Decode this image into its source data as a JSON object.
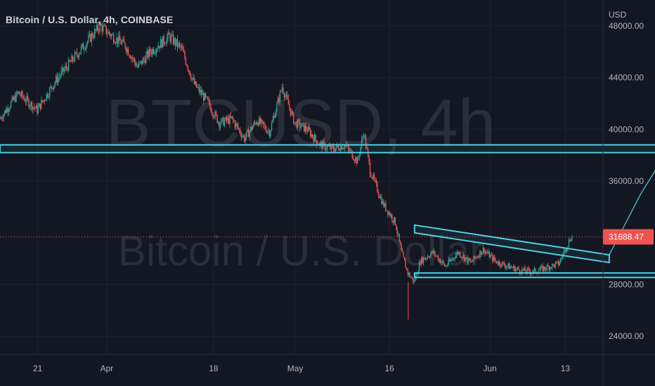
{
  "header": {
    "title": "Bitcoin / U.S. Dollar, 4h, COINBASE",
    "currency": "USD"
  },
  "watermark": {
    "symbol": "BTCUSD, 4h",
    "name": "Bitcoin / U.S. Dollar"
  },
  "colors": {
    "background": "#131722",
    "up": "#26a69a",
    "down": "#ef5350",
    "drawing": "#4dd0e1",
    "price_label": "#ef5350"
  },
  "chart_data": {
    "type": "candlestick",
    "title": "Bitcoin / U.S. Dollar, 4h, COINBASE",
    "ylabel": "USD",
    "ylim": [
      22600,
      50000
    ],
    "y_ticks": [
      "48000.00",
      "44000.00",
      "40000.00",
      "36000.00",
      "28000.00",
      "24000.00"
    ],
    "x_ticks": [
      "21",
      "Apr",
      "18",
      "May",
      "16",
      "Jun",
      "13"
    ],
    "x_range": [
      "2021-03-15",
      "2021-06-19"
    ],
    "current_price": "31688.47",
    "price_path": [
      [
        "2021-03-15",
        40800
      ],
      [
        "2021-03-18",
        42800
      ],
      [
        "2021-03-21",
        41500
      ],
      [
        "2021-03-24",
        43800
      ],
      [
        "2021-03-26",
        45000
      ],
      [
        "2021-03-29",
        46800
      ],
      [
        "2021-03-31",
        48000
      ],
      [
        "2021-04-02",
        47200
      ],
      [
        "2021-04-04",
        46500
      ],
      [
        "2021-04-06",
        44800
      ],
      [
        "2021-04-08",
        46000
      ],
      [
        "2021-04-11",
        47200
      ],
      [
        "2021-04-13",
        46200
      ],
      [
        "2021-04-15",
        43500
      ],
      [
        "2021-04-17",
        42200
      ],
      [
        "2021-04-19",
        40500
      ],
      [
        "2021-04-21",
        40800
      ],
      [
        "2021-04-23",
        39300
      ],
      [
        "2021-04-25",
        40700
      ],
      [
        "2021-04-27",
        39800
      ],
      [
        "2021-04-29",
        43300
      ],
      [
        "2021-05-01",
        40500
      ],
      [
        "2021-05-03",
        40000
      ],
      [
        "2021-05-05",
        38800
      ],
      [
        "2021-05-07",
        38500
      ],
      [
        "2021-05-09",
        38800
      ],
      [
        "2021-05-11",
        37500
      ],
      [
        "2021-05-12",
        39800
      ],
      [
        "2021-05-13",
        36800
      ],
      [
        "2021-05-15",
        34300
      ],
      [
        "2021-05-17",
        32800
      ],
      [
        "2021-05-18",
        30500
      ],
      [
        "2021-05-19",
        28900
      ],
      [
        "2021-05-20",
        28200
      ],
      [
        "2021-05-21",
        29800
      ],
      [
        "2021-05-23",
        30500
      ],
      [
        "2021-05-25",
        29400
      ],
      [
        "2021-05-27",
        30500
      ],
      [
        "2021-05-29",
        29700
      ],
      [
        "2021-05-31",
        30700
      ],
      [
        "2021-06-02",
        29800
      ],
      [
        "2021-06-04",
        29400
      ],
      [
        "2021-06-06",
        29100
      ],
      [
        "2021-06-08",
        29000
      ],
      [
        "2021-06-10",
        29300
      ],
      [
        "2021-06-12",
        29600
      ],
      [
        "2021-06-14",
        31688
      ]
    ],
    "drawings": {
      "resistance_zone": {
        "from": "2021-03-15",
        "to": "2021-07-13",
        "low": 38200,
        "high": 38800
      },
      "support_zone": {
        "from": "2021-05-20",
        "to": "2021-07-10",
        "low": 28550,
        "high": 28900
      },
      "descending_channel": [
        {
          "from": [
            "2021-05-20",
            32600
          ],
          "to": [
            "2021-06-20",
            30300
          ]
        },
        {
          "from": [
            "2021-05-20",
            32000
          ],
          "to": [
            "2021-06-20",
            29700
          ]
        }
      ],
      "projection": [
        [
          "2021-06-20",
          30300
        ],
        [
          "2021-06-25",
          35000
        ],
        [
          "2021-07-01",
          39700
        ],
        [
          "2021-07-03",
          38300
        ],
        [
          "2021-07-15",
          47300
        ]
      ]
    }
  }
}
